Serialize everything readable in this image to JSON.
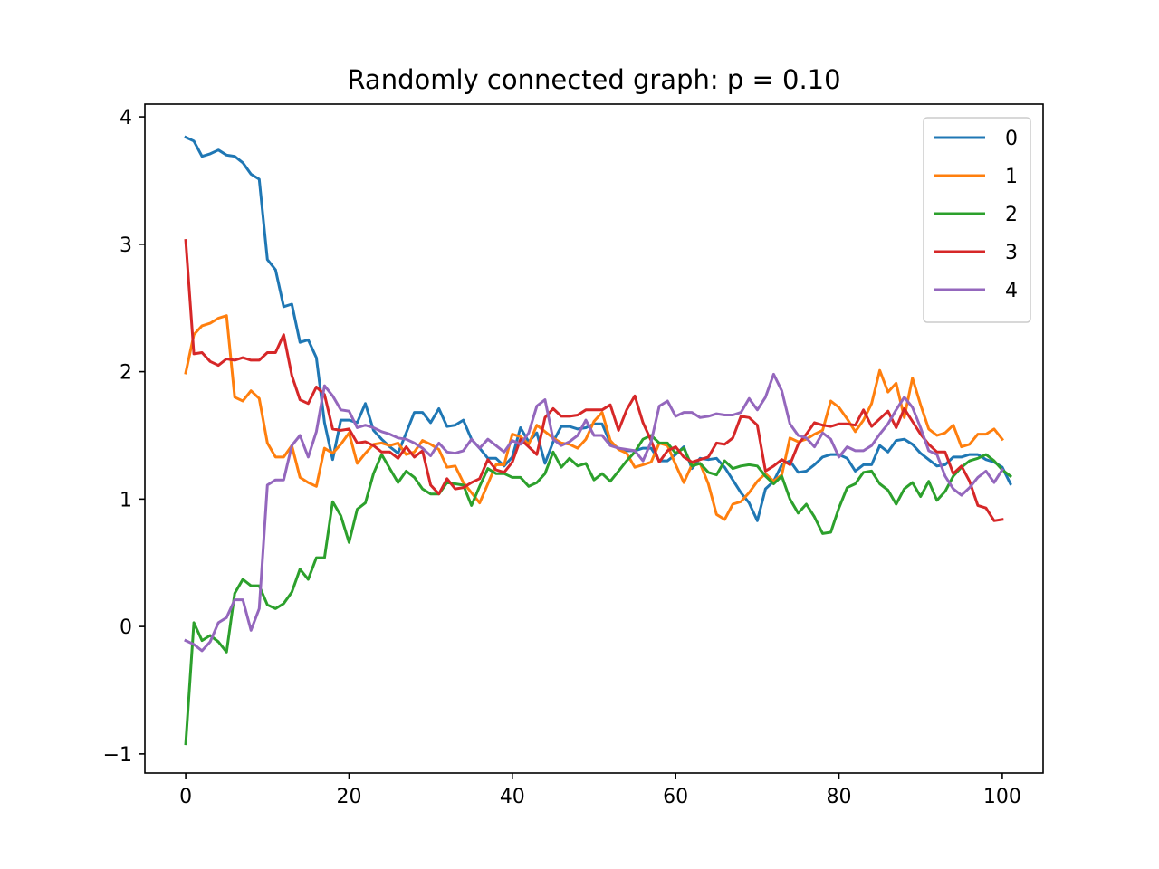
{
  "chart_data": {
    "type": "line",
    "title": "Randomly connected graph: p = 0.10",
    "xlabel": "",
    "ylabel": "",
    "xlim": [
      -5,
      105
    ],
    "ylim": [
      -1.15,
      4.1
    ],
    "xticks": [
      0,
      20,
      40,
      60,
      80,
      100
    ],
    "yticks": [
      -1,
      0,
      1,
      2,
      3,
      4
    ],
    "xtick_labels": [
      "0",
      "20",
      "40",
      "60",
      "80",
      "100"
    ],
    "ytick_labels": [
      "−1",
      "0",
      "1",
      "2",
      "3",
      "4"
    ],
    "grid": false,
    "legend_position": "top-right",
    "x_start": 0,
    "x_step": 1,
    "series": [
      {
        "name": "0",
        "color": "#1f77b4",
        "values": [
          3.84,
          3.81,
          3.69,
          3.71,
          3.74,
          3.7,
          3.69,
          3.64,
          3.55,
          3.51,
          2.88,
          2.8,
          2.51,
          2.53,
          2.23,
          2.25,
          2.11,
          1.6,
          1.31,
          1.62,
          1.62,
          1.6,
          1.75,
          1.54,
          1.47,
          1.41,
          1.36,
          1.52,
          1.68,
          1.68,
          1.6,
          1.71,
          1.57,
          1.58,
          1.62,
          1.47,
          1.4,
          1.32,
          1.32,
          1.26,
          1.33,
          1.56,
          1.45,
          1.52,
          1.28,
          1.45,
          1.57,
          1.57,
          1.55,
          1.56,
          1.59,
          1.59,
          1.44,
          1.4,
          1.38,
          1.38,
          1.4,
          1.4,
          1.3,
          1.3,
          1.35,
          1.41,
          1.24,
          1.32,
          1.31,
          1.32,
          1.25,
          1.15,
          1.05,
          0.97,
          0.83,
          1.08,
          1.14,
          1.27,
          1.3,
          1.21,
          1.22,
          1.27,
          1.33,
          1.35,
          1.35,
          1.32,
          1.22,
          1.27,
          1.27,
          1.42,
          1.37,
          1.46,
          1.47,
          1.43,
          1.36,
          1.31,
          1.26,
          1.27,
          1.33,
          1.33,
          1.35,
          1.35,
          1.31,
          1.29,
          1.25,
          1.12
        ]
      },
      {
        "name": "1",
        "color": "#ff7f0e",
        "values": [
          1.99,
          2.29,
          2.36,
          2.38,
          2.42,
          2.44,
          1.8,
          1.77,
          1.85,
          1.79,
          1.44,
          1.33,
          1.33,
          1.42,
          1.17,
          1.13,
          1.1,
          1.4,
          1.36,
          1.43,
          1.52,
          1.28,
          1.36,
          1.43,
          1.44,
          1.42,
          1.44,
          1.35,
          1.37,
          1.46,
          1.43,
          1.39,
          1.25,
          1.26,
          1.13,
          1.05,
          0.97,
          1.12,
          1.27,
          1.27,
          1.51,
          1.49,
          1.43,
          1.58,
          1.53,
          1.48,
          1.44,
          1.43,
          1.4,
          1.47,
          1.61,
          1.68,
          1.46,
          1.39,
          1.36,
          1.25,
          1.27,
          1.29,
          1.44,
          1.42,
          1.27,
          1.13,
          1.27,
          1.28,
          1.12,
          0.88,
          0.84,
          0.96,
          0.98,
          1.05,
          1.14,
          1.2,
          1.14,
          1.19,
          1.48,
          1.45,
          1.47,
          1.51,
          1.54,
          1.77,
          1.72,
          1.63,
          1.53,
          1.62,
          1.75,
          2.01,
          1.84,
          1.91,
          1.64,
          1.95,
          1.74,
          1.55,
          1.5,
          1.52,
          1.58,
          1.41,
          1.43,
          1.51,
          1.51,
          1.55,
          1.47
        ]
      },
      {
        "name": "2",
        "color": "#2ca02c",
        "values": [
          -0.92,
          0.03,
          -0.11,
          -0.07,
          -0.12,
          -0.2,
          0.26,
          0.37,
          0.32,
          0.32,
          0.17,
          0.14,
          0.18,
          0.27,
          0.45,
          0.37,
          0.54,
          0.54,
          0.98,
          0.87,
          0.66,
          0.92,
          0.97,
          1.2,
          1.35,
          1.24,
          1.13,
          1.22,
          1.17,
          1.08,
          1.04,
          1.04,
          1.13,
          1.12,
          1.11,
          0.95,
          1.1,
          1.24,
          1.2,
          1.2,
          1.17,
          1.17,
          1.1,
          1.13,
          1.2,
          1.37,
          1.25,
          1.32,
          1.26,
          1.28,
          1.15,
          1.2,
          1.14,
          1.22,
          1.3,
          1.37,
          1.47,
          1.5,
          1.44,
          1.44,
          1.36,
          1.4,
          1.26,
          1.28,
          1.21,
          1.19,
          1.3,
          1.24,
          1.26,
          1.27,
          1.26,
          1.18,
          1.12,
          1.18,
          1.0,
          0.89,
          0.96,
          0.86,
          0.73,
          0.74,
          0.93,
          1.09,
          1.12,
          1.21,
          1.22,
          1.12,
          1.07,
          0.96,
          1.08,
          1.13,
          1.02,
          1.14,
          0.99,
          1.06,
          1.18,
          1.25,
          1.3,
          1.32,
          1.35,
          1.3,
          1.23,
          1.18
        ]
      },
      {
        "name": "3",
        "color": "#d62728",
        "values": [
          3.03,
          2.14,
          2.15,
          2.08,
          2.05,
          2.1,
          2.09,
          2.11,
          2.09,
          2.09,
          2.15,
          2.15,
          2.29,
          1.97,
          1.78,
          1.75,
          1.88,
          1.82,
          1.55,
          1.54,
          1.55,
          1.44,
          1.45,
          1.42,
          1.37,
          1.37,
          1.32,
          1.41,
          1.33,
          1.38,
          1.11,
          1.04,
          1.16,
          1.08,
          1.09,
          1.13,
          1.16,
          1.31,
          1.23,
          1.21,
          1.29,
          1.47,
          1.41,
          1.35,
          1.64,
          1.71,
          1.65,
          1.65,
          1.66,
          1.7,
          1.7,
          1.7,
          1.74,
          1.54,
          1.7,
          1.81,
          1.6,
          1.46,
          1.29,
          1.38,
          1.41,
          1.33,
          1.29,
          1.31,
          1.33,
          1.44,
          1.43,
          1.48,
          1.65,
          1.64,
          1.58,
          1.22,
          1.26,
          1.31,
          1.27,
          1.43,
          1.51,
          1.6,
          1.58,
          1.57,
          1.59,
          1.59,
          1.58,
          1.7,
          1.57,
          1.63,
          1.69,
          1.56,
          1.71,
          1.61,
          1.51,
          1.43,
          1.37,
          1.37,
          1.2,
          1.26,
          1.14,
          0.95,
          0.93,
          0.83,
          0.84
        ]
      },
      {
        "name": "4",
        "color": "#9467bd",
        "values": [
          -0.11,
          -0.14,
          -0.19,
          -0.12,
          0.03,
          0.07,
          0.21,
          0.21,
          -0.03,
          0.14,
          1.11,
          1.15,
          1.15,
          1.42,
          1.5,
          1.33,
          1.53,
          1.89,
          1.81,
          1.7,
          1.69,
          1.56,
          1.58,
          1.56,
          1.53,
          1.51,
          1.48,
          1.47,
          1.44,
          1.4,
          1.34,
          1.44,
          1.37,
          1.36,
          1.38,
          1.47,
          1.4,
          1.47,
          1.42,
          1.37,
          1.46,
          1.43,
          1.52,
          1.73,
          1.78,
          1.47,
          1.42,
          1.45,
          1.5,
          1.62,
          1.5,
          1.5,
          1.42,
          1.4,
          1.39,
          1.38,
          1.3,
          1.45,
          1.73,
          1.77,
          1.65,
          1.68,
          1.68,
          1.64,
          1.65,
          1.67,
          1.66,
          1.66,
          1.68,
          1.79,
          1.7,
          1.8,
          1.98,
          1.85,
          1.59,
          1.5,
          1.48,
          1.41,
          1.52,
          1.47,
          1.33,
          1.41,
          1.38,
          1.38,
          1.42,
          1.51,
          1.59,
          1.7,
          1.8,
          1.72,
          1.56,
          1.38,
          1.35,
          1.18,
          1.08,
          1.03,
          1.09,
          1.17,
          1.22,
          1.13,
          1.23
        ]
      }
    ]
  }
}
